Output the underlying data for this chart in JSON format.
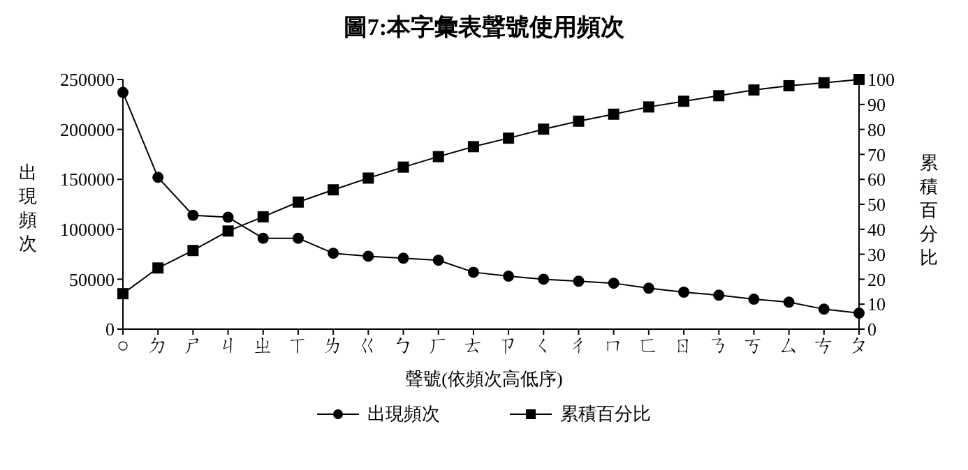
{
  "chart_data": {
    "type": "line",
    "title": "圖7:本字彙表聲號使用頻次",
    "xlabel": "聲號(依頻次高低序)",
    "ylabel": "出現頻次",
    "y2label": "累積百分比",
    "categories": [
      "○",
      "ㄉ",
      "ㄕ",
      "ㄐ",
      "ㄓ",
      "ㄒ",
      "ㄌ",
      "ㄍ",
      "ㄅ",
      "ㄏ",
      "ㄊ",
      "ㄗ",
      "ㄑ",
      "ㄔ",
      "ㄇ",
      "ㄈ",
      "ㄖ",
      "ㄋ",
      "ㄎ",
      "ㄙ",
      "ㄘ",
      "ㄆ"
    ],
    "series": [
      {
        "name": "出現頻次",
        "color": "#000000",
        "marker": "circle",
        "values": [
          237000,
          152000,
          114000,
          112000,
          91000,
          91000,
          76000,
          73000,
          71000,
          69000,
          57000,
          53000,
          50000,
          48000,
          46000,
          41000,
          37000,
          34000,
          30000,
          27000,
          20000,
          16000
        ]
      },
      {
        "name": "累積百分比",
        "color": "#000000",
        "marker": "square",
        "axis": "y2",
        "values": [
          14.2,
          24.5,
          31.5,
          39.3,
          45.0,
          50.9,
          55.8,
          60.5,
          64.9,
          69.1,
          73.1,
          76.5,
          80.1,
          83.3,
          86.1,
          89.0,
          91.3,
          93.5,
          95.8,
          97.5,
          98.7,
          100
        ]
      }
    ],
    "ylim": [
      0,
      250000
    ],
    "yticks": [
      0,
      50000,
      100000,
      150000,
      200000,
      250000
    ],
    "y2lim": [
      0,
      100
    ],
    "y2ticks": [
      0,
      10,
      20,
      30,
      40,
      50,
      60,
      70,
      80,
      90,
      100
    ],
    "grid": false,
    "legend": "bottom"
  }
}
